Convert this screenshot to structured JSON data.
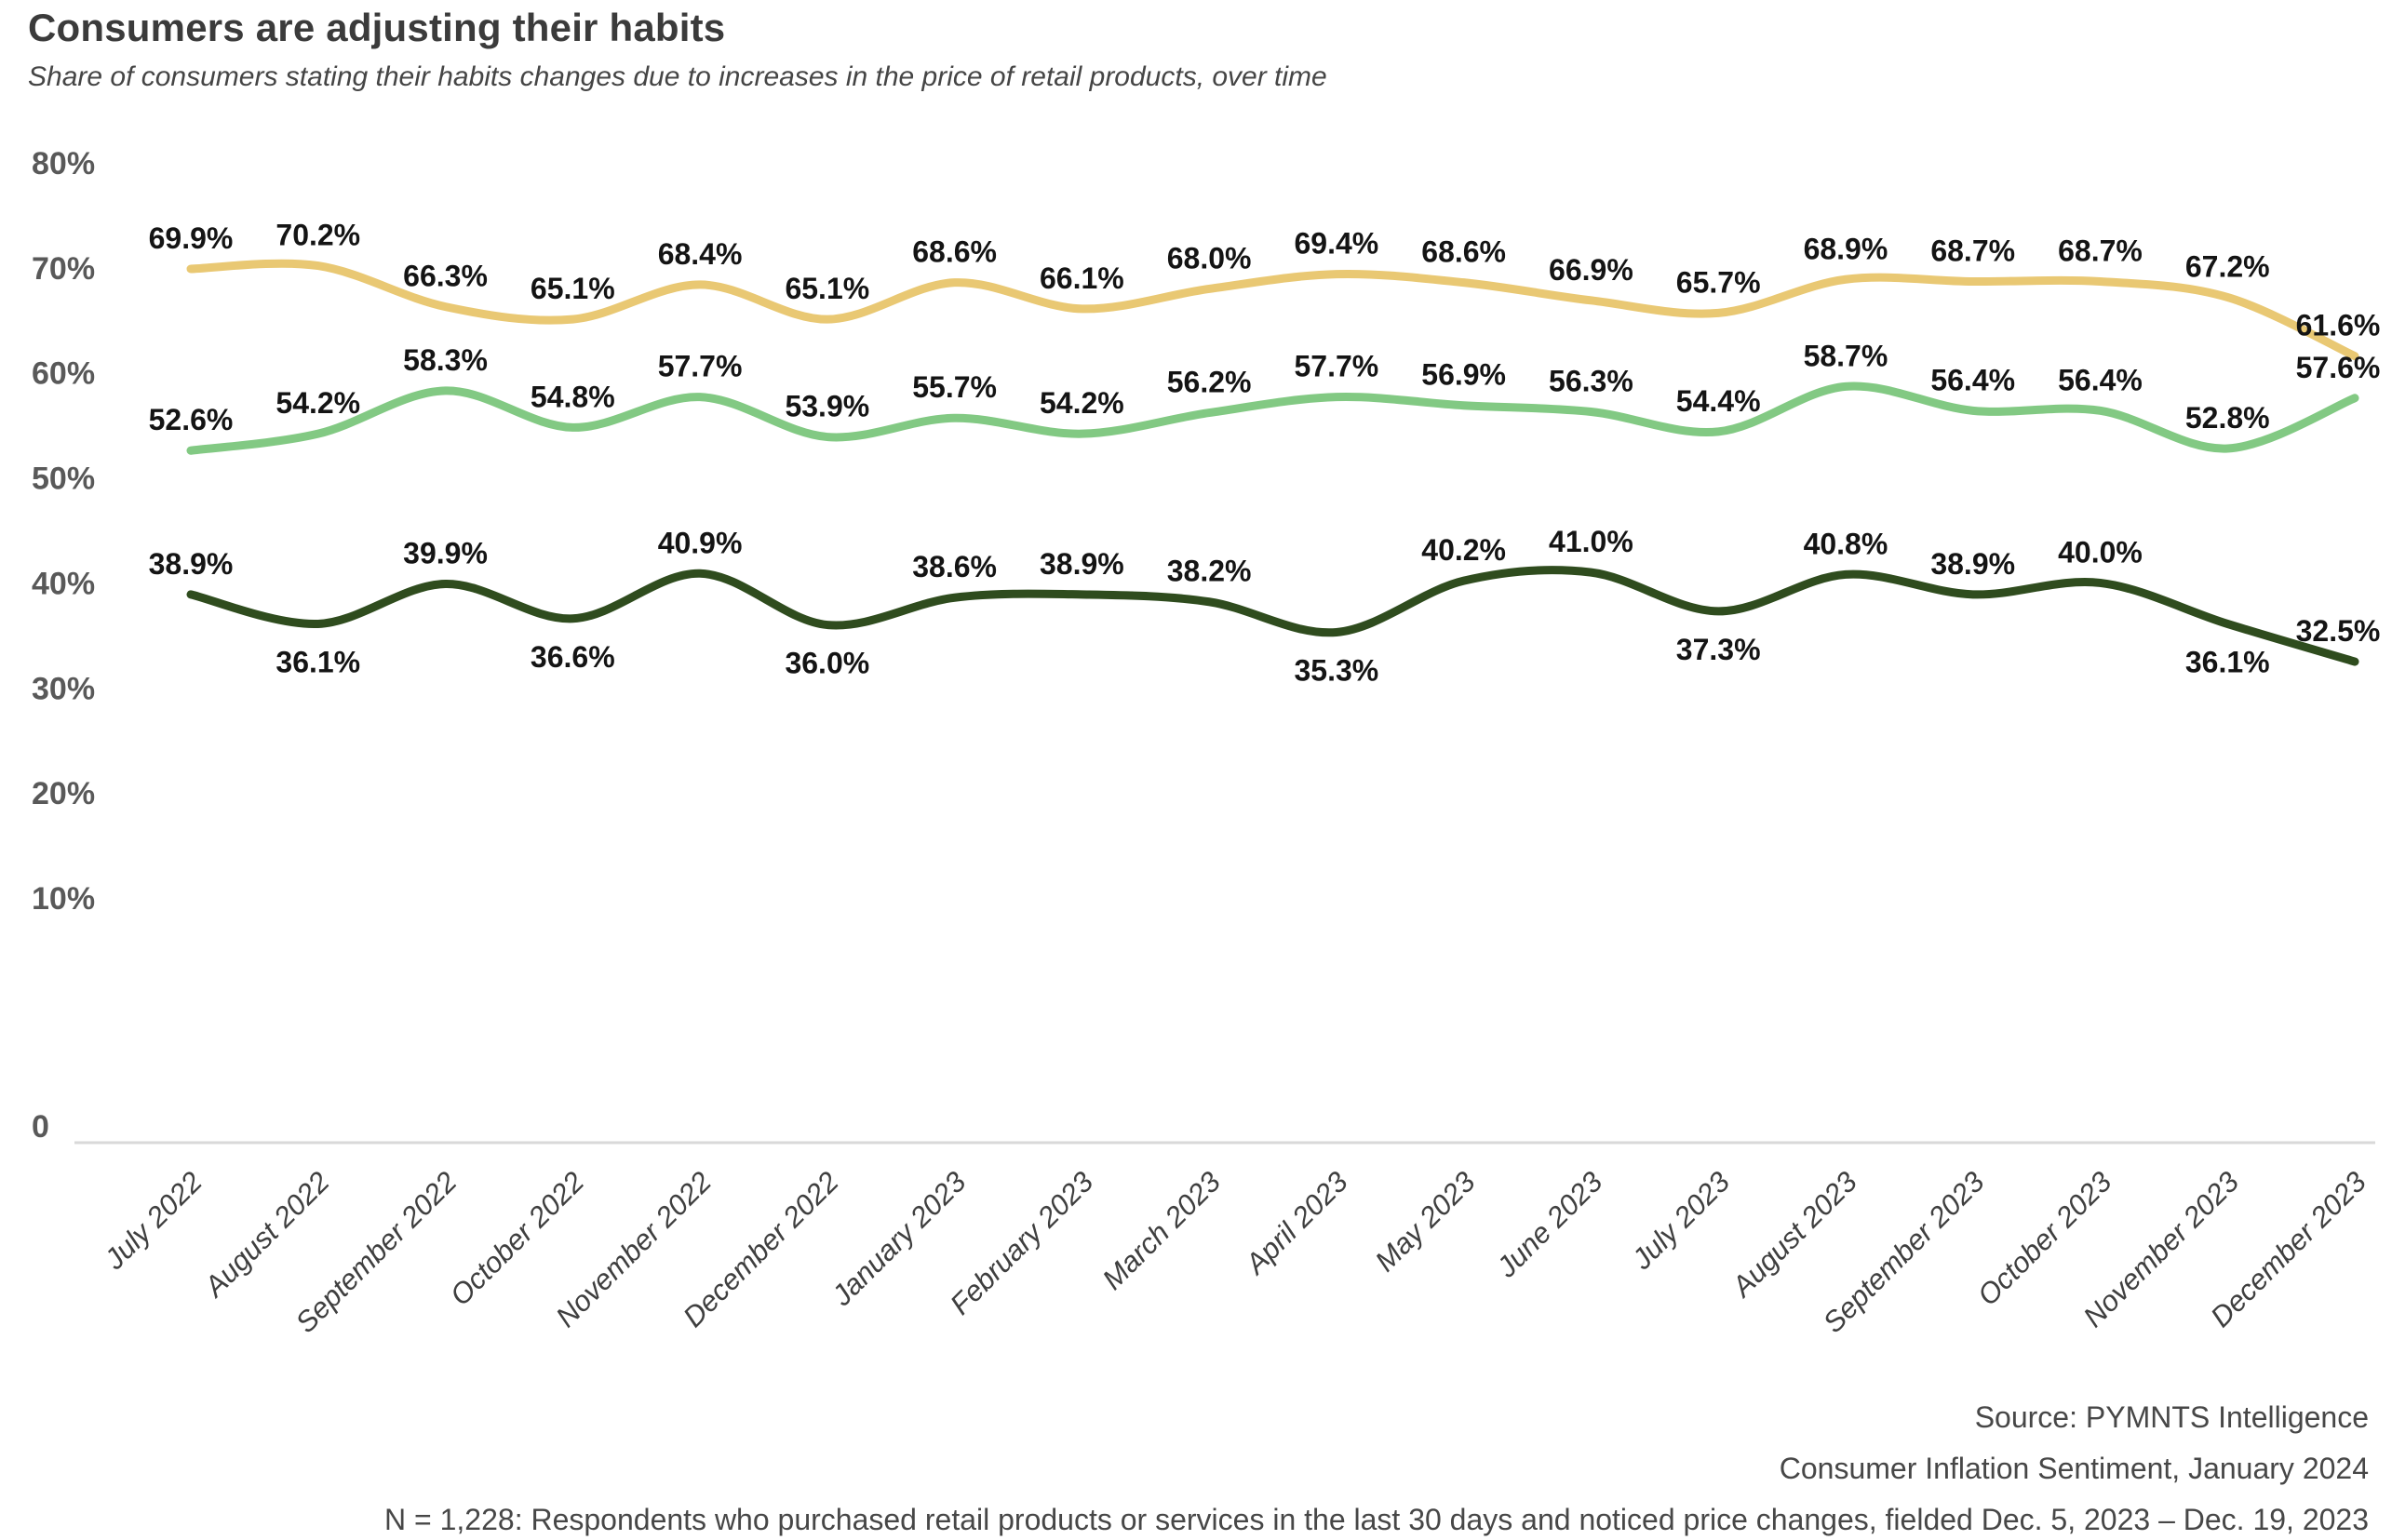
{
  "title": "Consumers are adjusting their habits",
  "subtitle": "Share of consumers stating their habits changes due to increases in the price of retail products, over time",
  "footer": {
    "source_line": "Source: PYMNTS Intelligence",
    "report_line": "Consumer Inflation Sentiment, January 2024",
    "n_line": "N = 1,228: Respondents who purchased retail products or services in the last 30 days and noticed price changes, fielded Dec. 5, 2023 – Dec. 19, 2023"
  },
  "colors": {
    "title_text": "#3b3b3b",
    "axis_tick_text": "#595959",
    "x_label_text": "#3f3f3f",
    "data_label_text": "#141414",
    "axis_line": "#d9d9d9",
    "series_gold": "#E9C873",
    "series_light_green": "#82C983",
    "series_dark_green": "#2F4C1E"
  },
  "chart_data": {
    "type": "line",
    "title": "Consumers are adjusting their habits",
    "subtitle": "Share of consumers stating their habits changes due to increases in the price of retail products, over time",
    "grid": "off",
    "legend": "none",
    "ylim": [
      0,
      80
    ],
    "y_axis_ticks": [
      "80%",
      "70%",
      "60%",
      "50%",
      "40%",
      "30%",
      "20%",
      "10%",
      "0"
    ],
    "x_label_style": "italic, rotated 45deg",
    "data_label_format": "one decimal + %",
    "categories": [
      "July 2022",
      "August 2022",
      "September 2022",
      "October 2022",
      "November 2022",
      "December 2022",
      "January 2023",
      "February 2023",
      "March 2023",
      "April 2023",
      "May 2023",
      "June 2023",
      "July 2023",
      "August 2023",
      "September 2023",
      "October 2023",
      "November 2023",
      "December 2023"
    ],
    "series": [
      {
        "name": "gold-line",
        "color": "#E9C873",
        "values": [
          69.9,
          70.2,
          66.3,
          65.1,
          68.4,
          65.1,
          68.6,
          66.1,
          68.0,
          69.4,
          68.6,
          66.9,
          65.7,
          68.9,
          68.7,
          68.7,
          67.2,
          61.6
        ],
        "label_below_indices": []
      },
      {
        "name": "light-green-line",
        "color": "#82C983",
        "values": [
          52.6,
          54.2,
          58.3,
          54.8,
          57.7,
          53.9,
          55.7,
          54.2,
          56.2,
          57.7,
          56.9,
          56.3,
          54.4,
          58.7,
          56.4,
          56.4,
          52.8,
          57.6
        ],
        "label_below_indices": []
      },
      {
        "name": "dark-green-line",
        "color": "#2F4C1E",
        "values": [
          38.9,
          36.1,
          39.9,
          36.6,
          40.9,
          36.0,
          38.6,
          38.9,
          38.2,
          35.3,
          40.2,
          41.0,
          37.3,
          40.8,
          38.9,
          40.0,
          36.1,
          32.5
        ],
        "label_below_indices": [
          1,
          3,
          5,
          9,
          12,
          16
        ]
      }
    ]
  }
}
